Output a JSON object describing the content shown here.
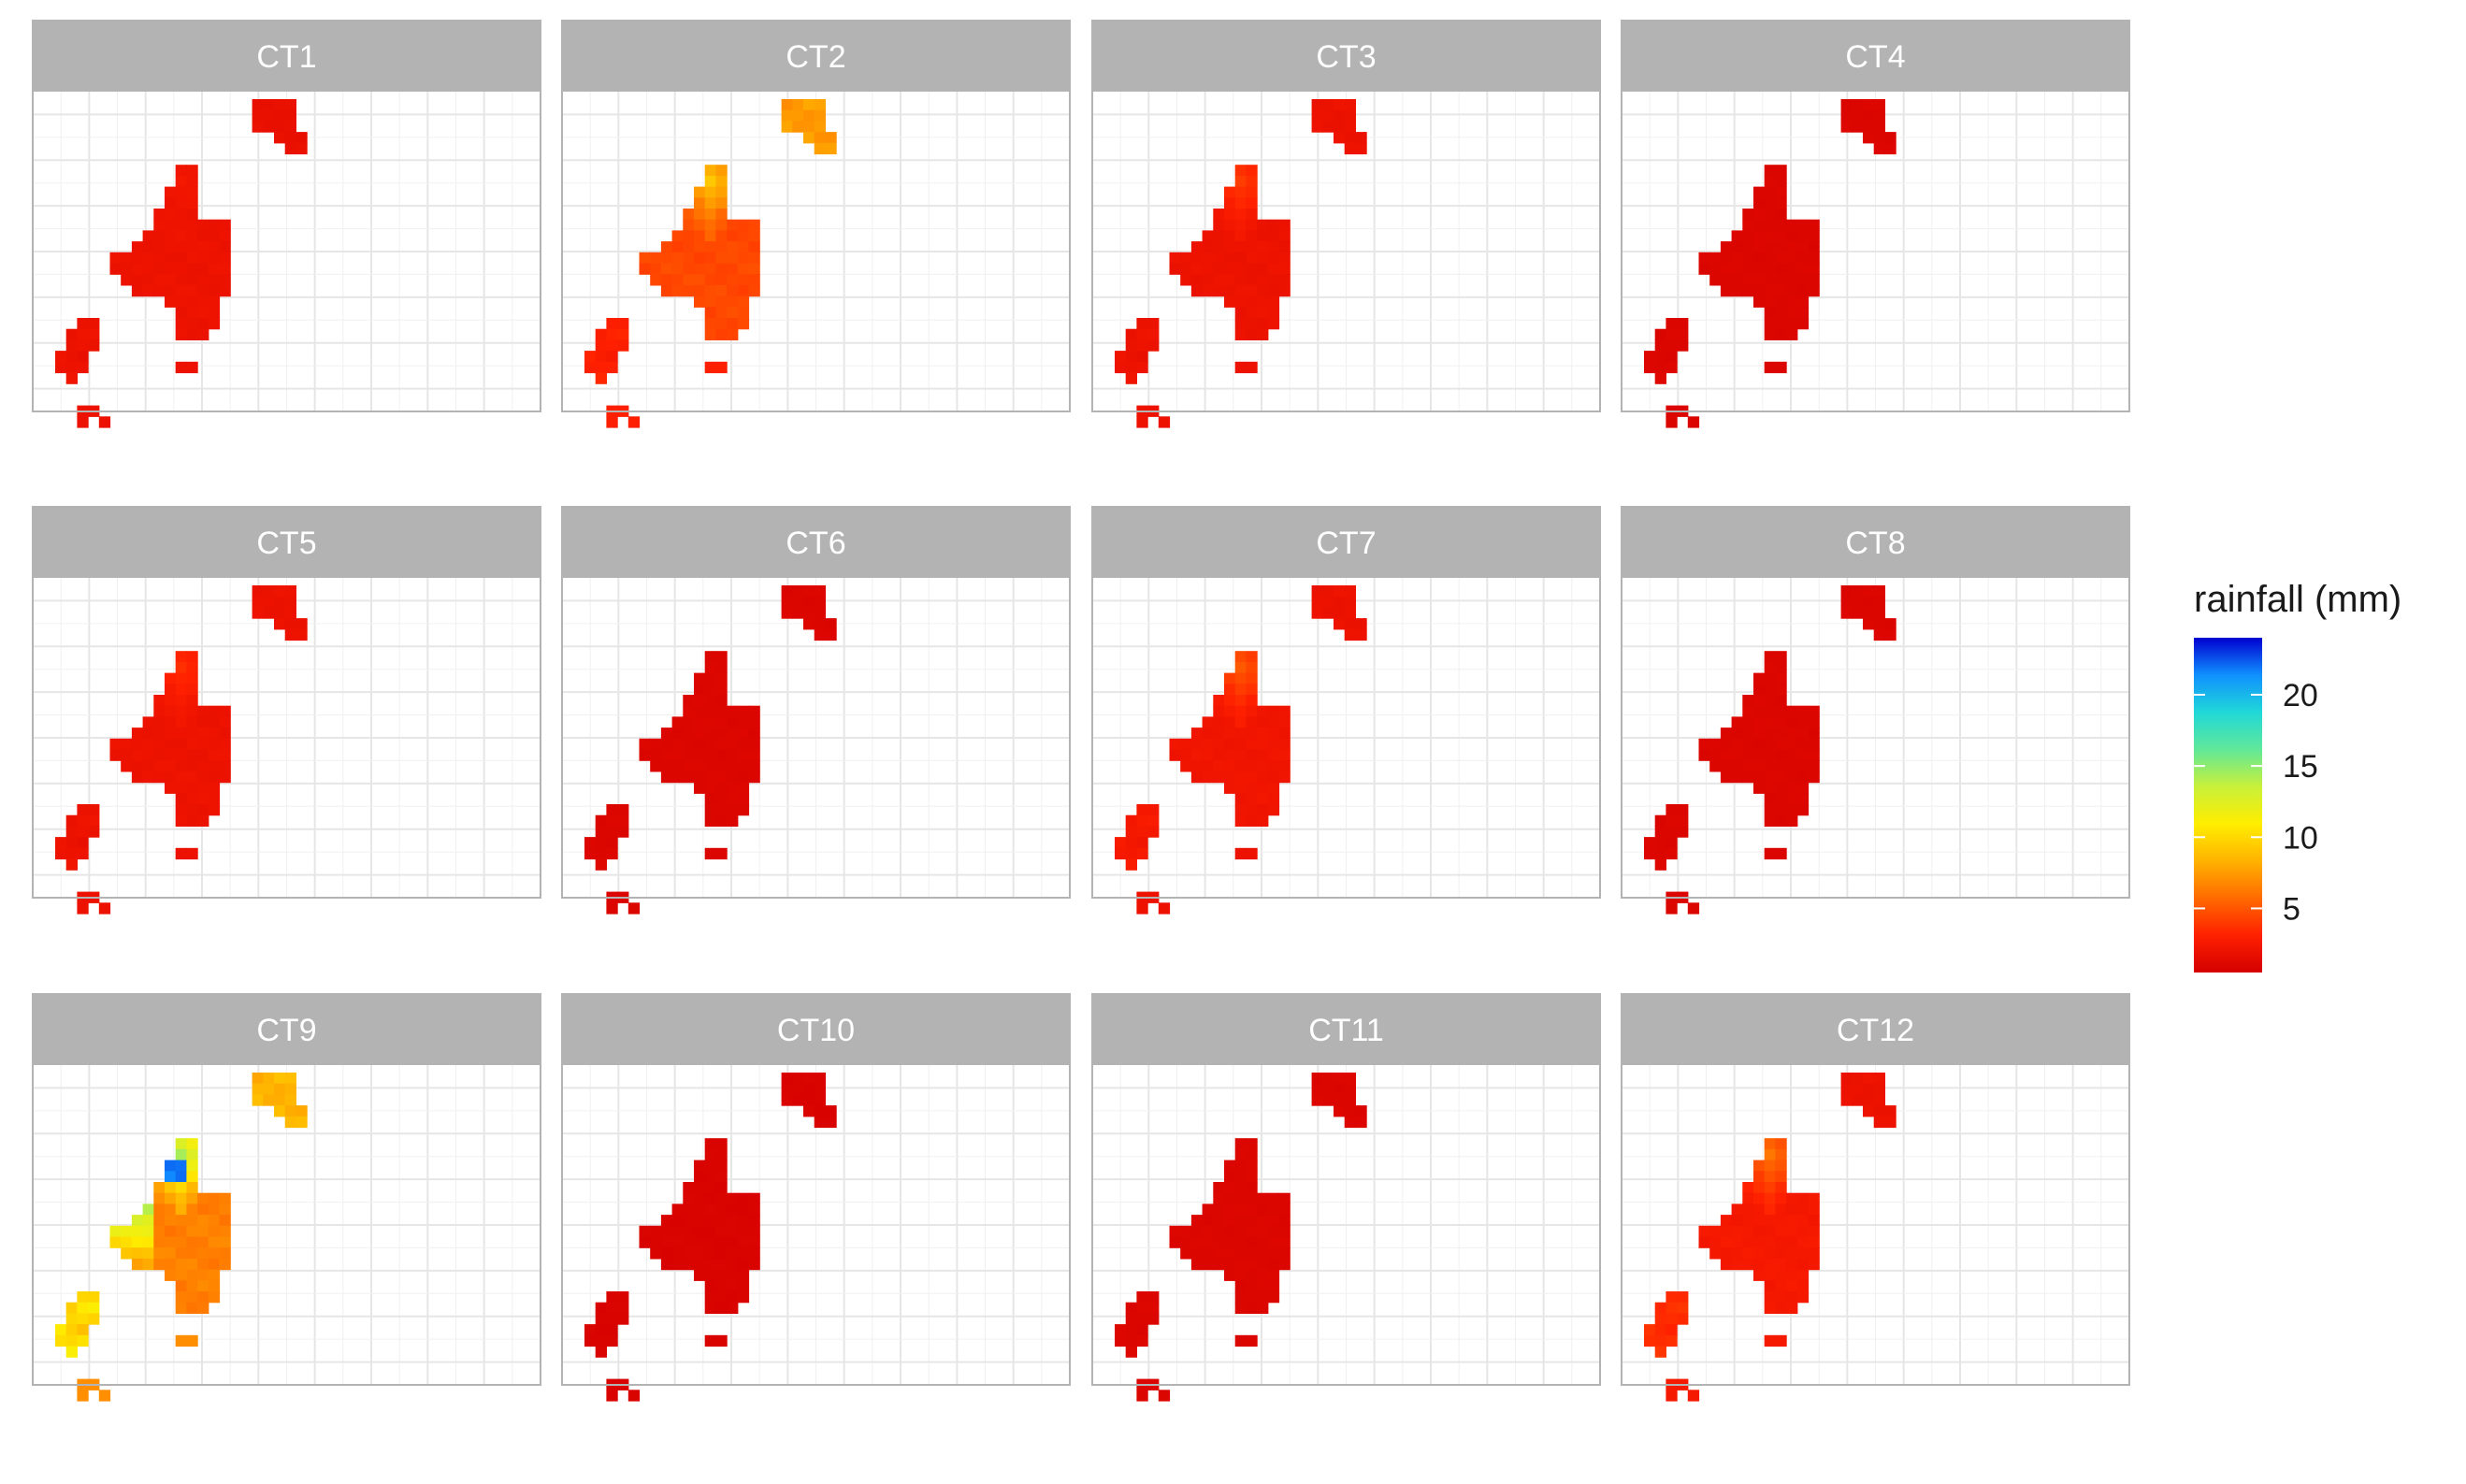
{
  "chart_data": {
    "type": "heatmap",
    "facets": [
      "CT1",
      "CT2",
      "CT3",
      "CT4",
      "CT5",
      "CT6",
      "CT7",
      "CT8",
      "CT9",
      "CT10",
      "CT11",
      "CT12"
    ],
    "legend": {
      "title": "rainfall (mm)",
      "ticks": [
        20,
        15,
        10,
        5
      ],
      "range": [
        0.5,
        24
      ],
      "colors": [
        "#d40000",
        "#ff2000",
        "#ff6a00",
        "#ffb300",
        "#ffee00",
        "#c8f03a",
        "#60e89a",
        "#20d8d8",
        "#1090ff",
        "#0000d0"
      ],
      "placement": "right"
    },
    "grid": true,
    "facet_values": {
      "CT1": {
        "main": 2.0,
        "west": 2.0,
        "northeast": 1.8,
        "northwest": 2.3,
        "south": 2.0
      },
      "CT2": {
        "main": 4.5,
        "west": 3.0,
        "northeast": 7.5,
        "northwest": 9.0,
        "south": 3.0
      },
      "CT3": {
        "main": 2.0,
        "west": 2.0,
        "northeast": 2.0,
        "northwest": 4.0,
        "south": 2.0
      },
      "CT4": {
        "main": 1.0,
        "west": 1.0,
        "northeast": 1.0,
        "northwest": 1.0,
        "south": 1.0
      },
      "CT5": {
        "main": 2.0,
        "west": 2.0,
        "northeast": 2.0,
        "northwest": 3.5,
        "south": 2.0
      },
      "CT6": {
        "main": 1.0,
        "west": 1.0,
        "northeast": 1.0,
        "northwest": 1.0,
        "south": 1.0
      },
      "CT7": {
        "main": 2.2,
        "west": 2.5,
        "northeast": 2.0,
        "northwest": 5.0,
        "south": 2.0
      },
      "CT8": {
        "main": 1.0,
        "west": 1.0,
        "northeast": 1.0,
        "northwest": 1.0,
        "south": 1.0
      },
      "CT9": {
        "main": 6.5,
        "west": 10.0,
        "northeast": 8.5,
        "northwest": 14.0,
        "south": 7.0,
        "peak": 22.0
      },
      "CT10": {
        "main": 0.8,
        "west": 0.8,
        "northeast": 0.8,
        "northwest": 0.8,
        "south": 0.8
      },
      "CT11": {
        "main": 1.0,
        "west": 1.0,
        "northeast": 1.0,
        "northwest": 1.0,
        "south": 1.0
      },
      "CT12": {
        "main": 2.5,
        "west": 3.5,
        "northeast": 2.0,
        "northwest": 6.0,
        "south": 2.5
      }
    }
  }
}
